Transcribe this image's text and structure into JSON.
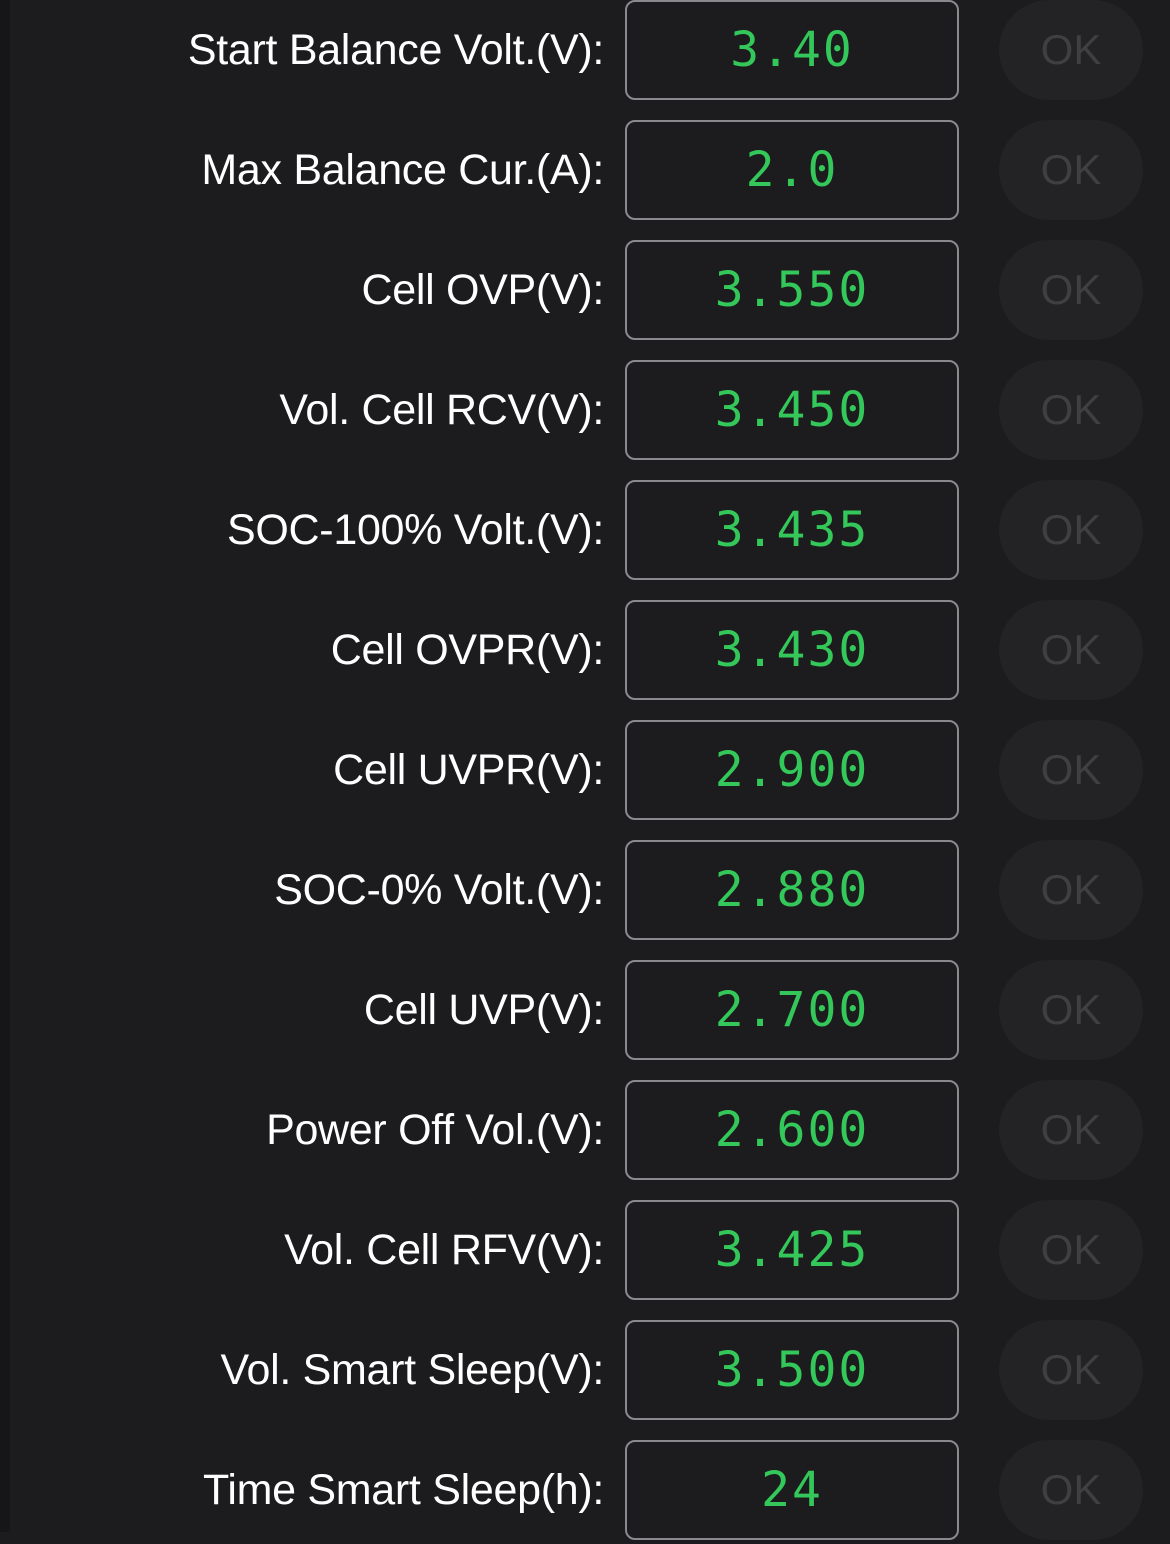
{
  "settings": {
    "ok_label": "OK",
    "rows": [
      {
        "label": "Start Balance Volt.(V):",
        "value": "3.40"
      },
      {
        "label": "Max Balance Cur.(A):",
        "value": "2.0"
      },
      {
        "label": "Cell OVP(V):",
        "value": "3.550"
      },
      {
        "label": "Vol. Cell RCV(V):",
        "value": "3.450"
      },
      {
        "label": "SOC-100% Volt.(V):",
        "value": "3.435"
      },
      {
        "label": "Cell OVPR(V):",
        "value": "3.430"
      },
      {
        "label": "Cell UVPR(V):",
        "value": "2.900"
      },
      {
        "label": "SOC-0% Volt.(V):",
        "value": "2.880"
      },
      {
        "label": "Cell UVP(V):",
        "value": "2.700"
      },
      {
        "label": "Power Off Vol.(V):",
        "value": "2.600"
      },
      {
        "label": "Vol. Cell RFV(V):",
        "value": "3.425"
      },
      {
        "label": "Vol. Smart Sleep(V):",
        "value": "3.500"
      },
      {
        "label": "Time Smart Sleep(h):",
        "value": "24"
      }
    ]
  },
  "colors": {
    "background": "#1c1c1e",
    "value_text": "#34c759",
    "label_text": "#ffffff",
    "box_border": "#8a8a8e",
    "ok_button_bg": "#232325",
    "ok_button_text": "#3f3f42"
  }
}
